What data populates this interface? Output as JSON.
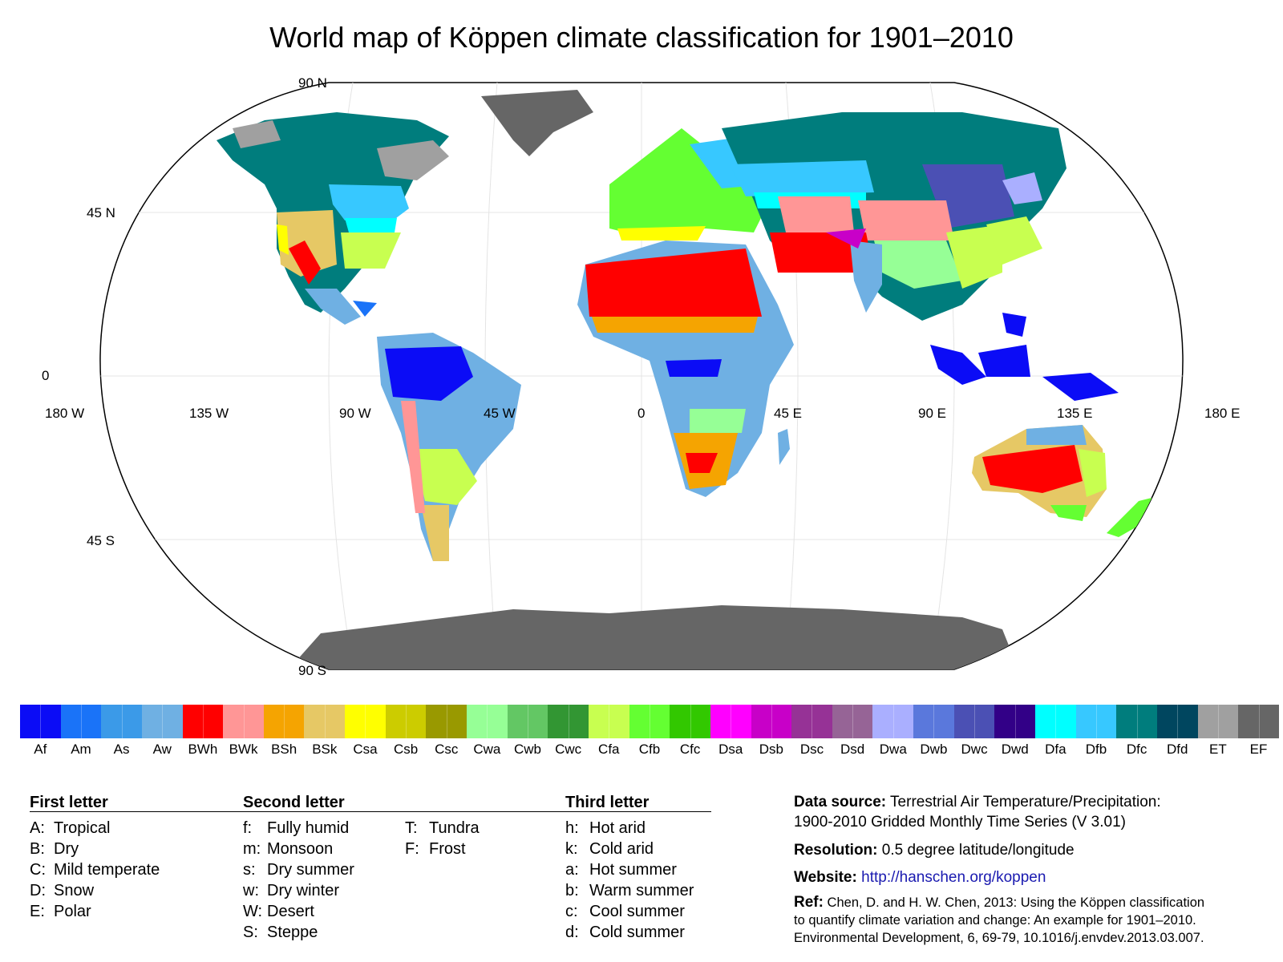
{
  "title": "World map of Köppen climate classification for 1901–2010",
  "map": {
    "lat_labels": {
      "n90": "90 N",
      "n45": "45 N",
      "eq": "0",
      "s45": "45 S",
      "s90": "90 S"
    },
    "lon_labels": [
      "180 W",
      "135 W",
      "90 W",
      "45 W",
      "0",
      "45 E",
      "90 E",
      "135 E",
      "180 E"
    ]
  },
  "climate_classes": [
    {
      "code": "Af",
      "color": "#0b0cf6"
    },
    {
      "code": "Am",
      "color": "#1a73f8"
    },
    {
      "code": "As",
      "color": "#3b9ae8"
    },
    {
      "code": "Aw",
      "color": "#6fb0e3"
    },
    {
      "code": "BWh",
      "color": "#ff0000"
    },
    {
      "code": "BWk",
      "color": "#ff9696"
    },
    {
      "code": "BSh",
      "color": "#f5a401"
    },
    {
      "code": "BSk",
      "color": "#e6c865"
    },
    {
      "code": "Csa",
      "color": "#ffff00"
    },
    {
      "code": "Csb",
      "color": "#cccc00"
    },
    {
      "code": "Csc",
      "color": "#999900"
    },
    {
      "code": "Cwa",
      "color": "#96ff96"
    },
    {
      "code": "Cwb",
      "color": "#63c764"
    },
    {
      "code": "Cwc",
      "color": "#329633"
    },
    {
      "code": "Cfa",
      "color": "#c8ff50"
    },
    {
      "code": "Cfb",
      "color": "#64ff32"
    },
    {
      "code": "Cfc",
      "color": "#32c800"
    },
    {
      "code": "Dsa",
      "color": "#ff00ff"
    },
    {
      "code": "Dsb",
      "color": "#c800c8"
    },
    {
      "code": "Dsc",
      "color": "#963296"
    },
    {
      "code": "Dsd",
      "color": "#966496"
    },
    {
      "code": "Dwa",
      "color": "#aaafff"
    },
    {
      "code": "Dwb",
      "color": "#5a78dc"
    },
    {
      "code": "Dwc",
      "color": "#4b50b4"
    },
    {
      "code": "Dwd",
      "color": "#320087"
    },
    {
      "code": "Dfa",
      "color": "#00ffff"
    },
    {
      "code": "Dfb",
      "color": "#37c8ff"
    },
    {
      "code": "Dfc",
      "color": "#007d7d"
    },
    {
      "code": "Dfd",
      "color": "#00465f"
    },
    {
      "code": "ET",
      "color": "#a0a0a0"
    },
    {
      "code": "EF",
      "color": "#666666"
    }
  ],
  "legend": {
    "first": {
      "heading": "First letter",
      "items": [
        {
          "key": "A:",
          "text": "Tropical"
        },
        {
          "key": "B:",
          "text": "Dry"
        },
        {
          "key": "C:",
          "text": "Mild temperate"
        },
        {
          "key": "D:",
          "text": "Snow"
        },
        {
          "key": "E:",
          "text": "Polar"
        }
      ]
    },
    "second": {
      "heading": "Second letter",
      "items": [
        {
          "key": "f:",
          "text": "Fully humid"
        },
        {
          "key": "m:",
          "text": "Monsoon"
        },
        {
          "key": "s:",
          "text": "Dry summer"
        },
        {
          "key": "w:",
          "text": "Dry winter"
        },
        {
          "key": "W:",
          "text": "Desert"
        },
        {
          "key": "S:",
          "text": "Steppe"
        }
      ],
      "items_b": [
        {
          "key": "T:",
          "text": "Tundra"
        },
        {
          "key": "F:",
          "text": "Frost"
        }
      ]
    },
    "third": {
      "heading": "Third letter",
      "items": [
        {
          "key": "h:",
          "text": "Hot arid"
        },
        {
          "key": "k:",
          "text": "Cold arid"
        },
        {
          "key": "a:",
          "text": "Hot summer"
        },
        {
          "key": "b:",
          "text": "Warm summer"
        },
        {
          "key": "c:",
          "text": "Cool summer"
        },
        {
          "key": "d:",
          "text": "Cold summer"
        }
      ]
    }
  },
  "info": {
    "data_source_label": "Data source:",
    "data_source_text": "Terrestrial Air Temperature/Precipitation:",
    "data_source_text2": "1900-2010 Gridded Monthly Time Series (V 3.01)",
    "resolution_label": "Resolution:",
    "resolution_text": "0.5 degree latitude/longitude",
    "website_label": "Website:",
    "website_url": "http://hanschen.org/koppen",
    "ref_label": "Ref:",
    "ref_line1": "Chen, D. and H. W. Chen, 2013: Using the Köppen classification",
    "ref_line2": "to quantify climate variation and change: An example for 1901–2010.",
    "ref_line3": "Environmental Development, 6, 69-79, 10.1016/j.envdev.2013.03.007."
  }
}
